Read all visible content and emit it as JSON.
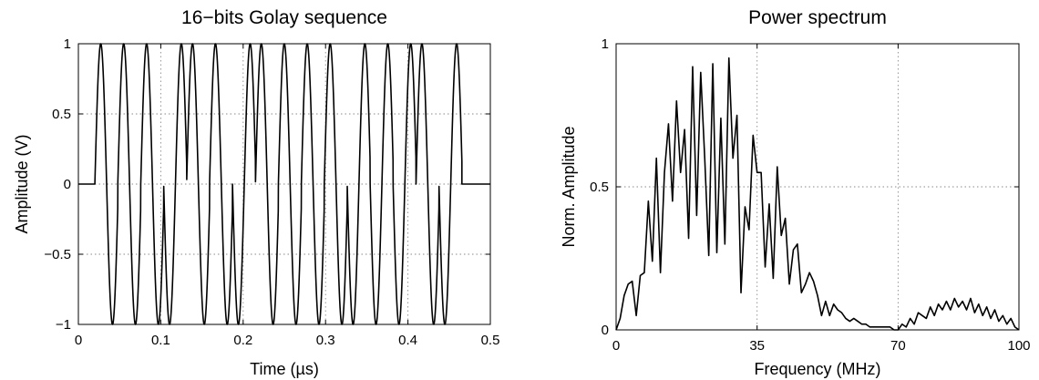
{
  "chart_data": [
    {
      "type": "line",
      "title": "16−bits Golay sequence",
      "xlabel": "Time (µs)",
      "ylabel": "Amplitude (V)",
      "xlim": [
        0,
        0.5
      ],
      "ylim": [
        -1,
        1
      ],
      "xticks": [
        0,
        0.1,
        0.2,
        0.3,
        0.4,
        0.5
      ],
      "xtick_labels": [
        "0",
        "0.1",
        "0.2",
        "0.3",
        "0.4",
        "0.5"
      ],
      "yticks": [
        -1,
        -0.5,
        0,
        0.5,
        1
      ],
      "ytick_labels": [
        "−1",
        "−0.5",
        "0",
        "0.5",
        "1"
      ],
      "grid": true,
      "signal": {
        "start_time": 0.02,
        "end_time": 0.4655,
        "carrier_frequency_mhz": 35,
        "bit_sequence": [
          1,
          1,
          1,
          -1,
          1,
          1,
          -1,
          1,
          1,
          1,
          1,
          -1,
          -1,
          -1,
          1,
          -1
        ]
      }
    },
    {
      "type": "line",
      "title": "Power spectrum",
      "xlabel": "Frequency (MHz)",
      "ylabel": "Norm. Amplitude",
      "xlim": [
        0,
        100
      ],
      "ylim": [
        0,
        1
      ],
      "xticks": [
        0,
        35,
        70,
        100
      ],
      "xtick_labels": [
        "0",
        "35",
        "70",
        "100"
      ],
      "yticks": [
        0,
        0.5,
        1
      ],
      "ytick_labels": [
        "0",
        "0.5",
        "1"
      ],
      "grid": true,
      "series": [
        {
          "x": [
            0,
            1,
            2,
            3,
            4,
            5,
            6,
            7,
            8,
            9,
            10,
            11,
            12,
            13,
            14,
            15,
            16,
            17,
            18,
            19,
            20,
            21,
            22,
            23,
            24,
            25,
            26,
            27,
            28,
            29,
            30,
            31,
            32,
            33,
            34,
            35,
            36,
            37,
            38,
            39,
            40,
            41,
            42,
            43,
            44,
            45,
            46,
            47,
            48,
            49,
            50,
            51,
            52,
            53,
            54,
            55,
            56,
            57,
            58,
            59,
            60,
            61,
            62,
            63,
            64,
            65,
            66,
            67,
            68,
            69,
            70,
            71,
            72,
            73,
            74,
            75,
            76,
            77,
            78,
            79,
            80,
            81,
            82,
            83,
            84,
            85,
            86,
            87,
            88,
            89,
            90,
            91,
            92,
            93,
            94,
            95,
            96,
            97,
            98,
            99,
            100
          ],
          "y": [
            0,
            0.04,
            0.12,
            0.16,
            0.17,
            0.05,
            0.19,
            0.2,
            0.45,
            0.24,
            0.6,
            0.2,
            0.55,
            0.72,
            0.45,
            0.8,
            0.55,
            0.7,
            0.32,
            0.92,
            0.4,
            0.9,
            0.6,
            0.26,
            0.93,
            0.27,
            0.74,
            0.3,
            0.95,
            0.6,
            0.75,
            0.13,
            0.43,
            0.35,
            0.68,
            0.55,
            0.55,
            0.22,
            0.44,
            0.18,
            0.57,
            0.33,
            0.39,
            0.16,
            0.28,
            0.3,
            0.13,
            0.16,
            0.2,
            0.17,
            0.12,
            0.05,
            0.1,
            0.05,
            0.09,
            0.07,
            0.06,
            0.04,
            0.03,
            0.04,
            0.03,
            0.02,
            0.02,
            0.01,
            0.01,
            0.01,
            0.01,
            0.01,
            0.01,
            0.0,
            0.0,
            0.02,
            0.01,
            0.04,
            0.02,
            0.06,
            0.05,
            0.04,
            0.08,
            0.05,
            0.09,
            0.07,
            0.1,
            0.07,
            0.11,
            0.08,
            0.1,
            0.07,
            0.11,
            0.06,
            0.09,
            0.05,
            0.08,
            0.04,
            0.07,
            0.03,
            0.05,
            0.02,
            0.04,
            0.01,
            0.0
          ]
        }
      ]
    }
  ]
}
